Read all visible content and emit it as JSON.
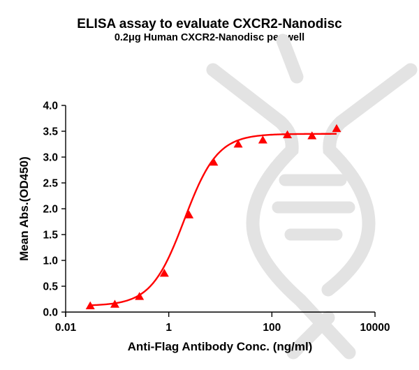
{
  "chart_data": {
    "type": "scatter",
    "title": "ELISA assay to evaluate CXCR2-Nanodisc",
    "subtitle": "0.2μg Human CXCR2-Nanodisc per well",
    "xlabel": "Anti-Flag Antibody Conc. (ng/ml)",
    "ylabel": "Mean Abs.(OD450)",
    "xscale": "log",
    "xlim": [
      0.01,
      10000
    ],
    "ylim": [
      0.0,
      4.0
    ],
    "xticks": [
      "0.01",
      "1",
      "100",
      "10000"
    ],
    "yticks": [
      "0.0",
      "0.5",
      "1.0",
      "1.5",
      "2.0",
      "2.5",
      "3.0",
      "3.5",
      "4.0"
    ],
    "grid": false,
    "legend": null,
    "series": [
      {
        "name": "CXCR2-Nanodisc",
        "marker": "triangle",
        "color": "#ff0000",
        "x": [
          0.03,
          0.09,
          0.27,
          0.82,
          2.47,
          7.41,
          22.2,
          66.7,
          200,
          600,
          1800
        ],
        "y": [
          0.12,
          0.15,
          0.3,
          0.75,
          1.88,
          2.9,
          3.25,
          3.33,
          3.43,
          3.41,
          3.55
        ]
      }
    ],
    "fit": {
      "type": "4PL sigmoid",
      "color": "#ff0000",
      "bottom": 0.12,
      "top": 3.45,
      "ec50": 2.0,
      "hill": 1.35,
      "x_range": [
        0.03,
        1800
      ]
    }
  },
  "watermark": {
    "shape": "dna-icon",
    "color": "#e3e3e3"
  }
}
